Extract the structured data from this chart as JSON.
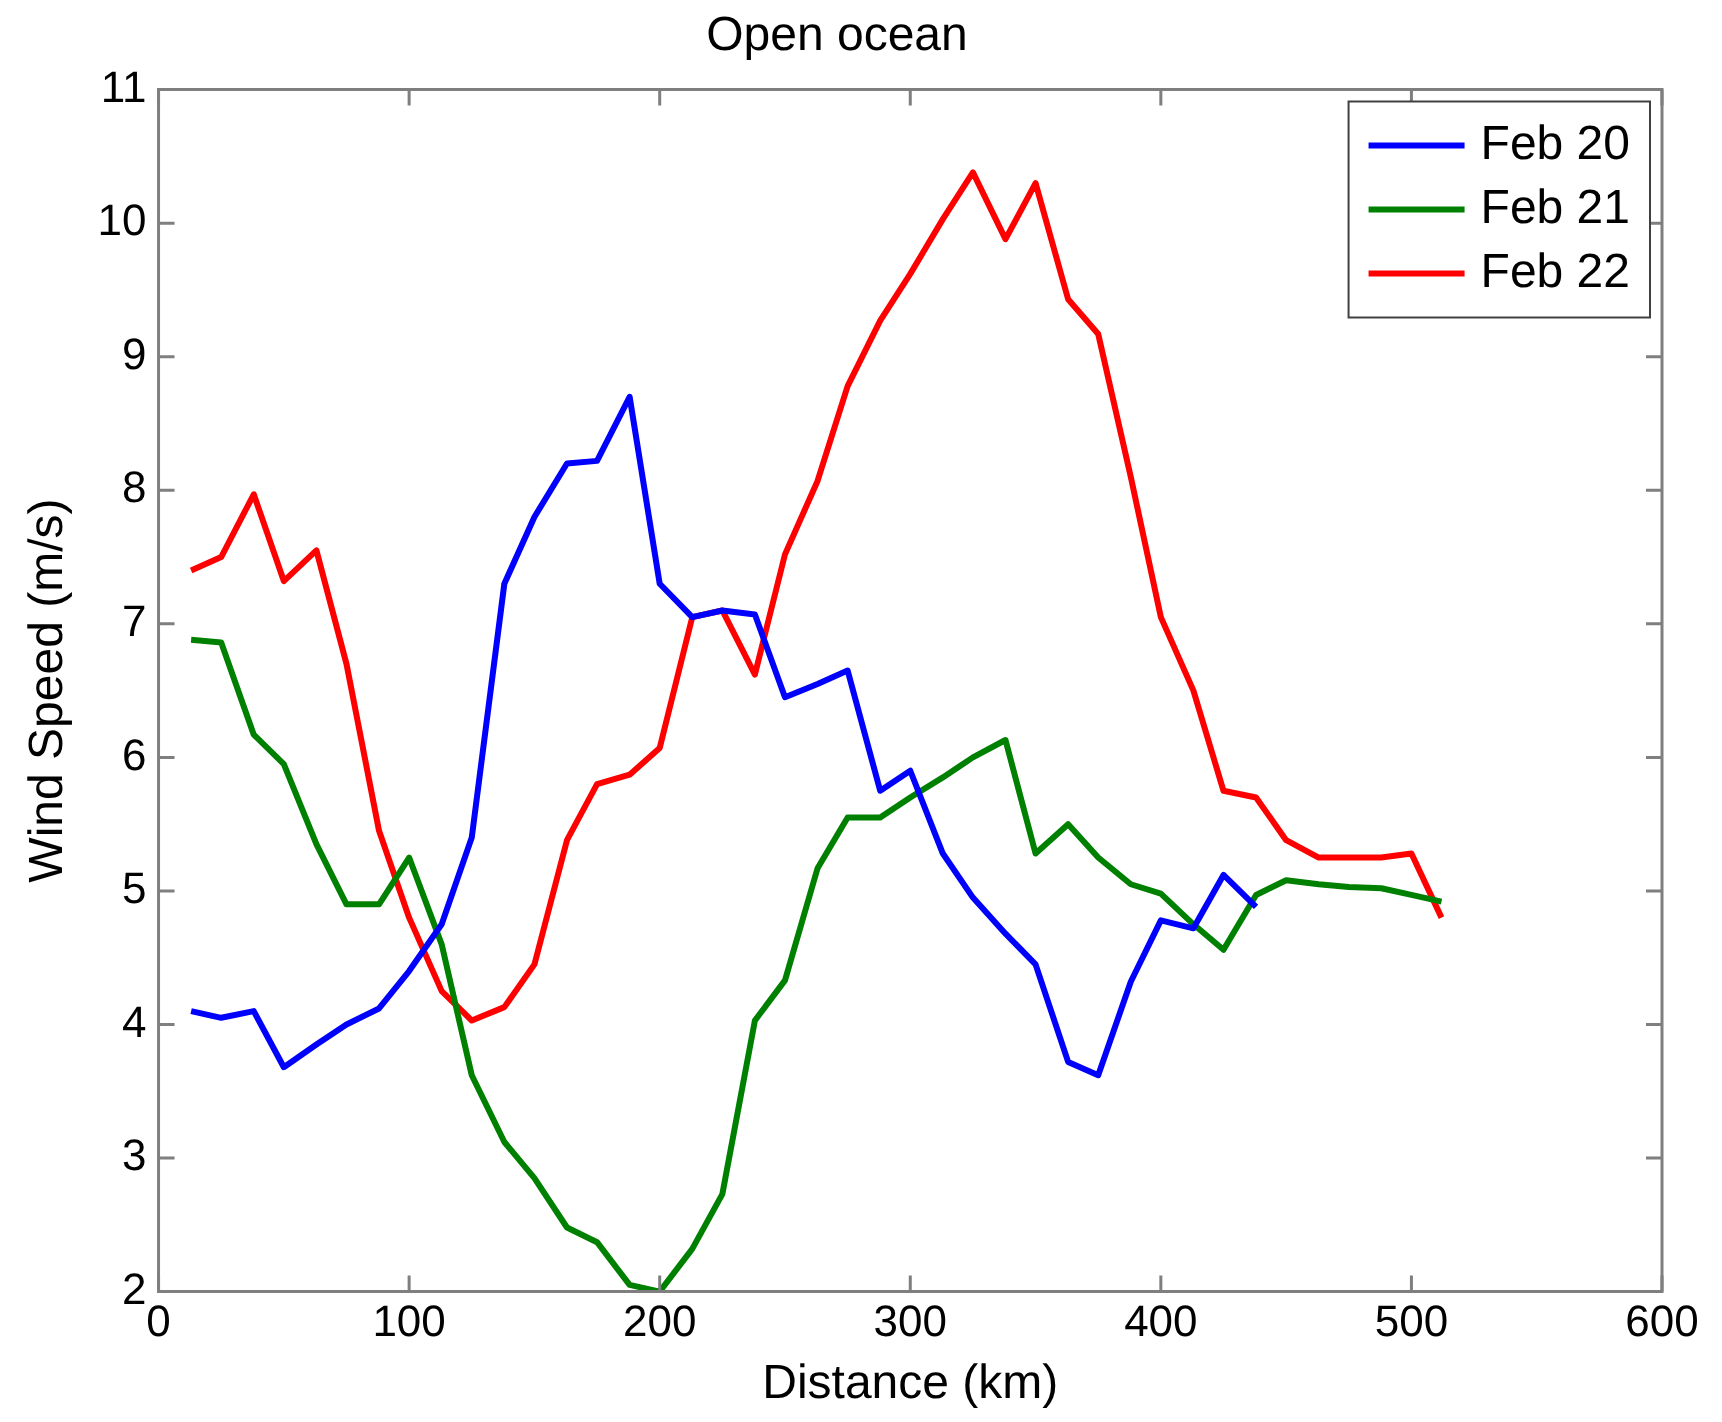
{
  "chart_data": {
    "type": "line",
    "title": "Open ocean",
    "xlabel": "Distance (km)",
    "ylabel": "Wind Speed (m/s)",
    "x": [
      13,
      25,
      38,
      50,
      63,
      75,
      88,
      100,
      113,
      125,
      138,
      150,
      163,
      175,
      188,
      200,
      213,
      225,
      238,
      250,
      263,
      275,
      288,
      300,
      313,
      325,
      338,
      350,
      363,
      375,
      388,
      400,
      413,
      425,
      438,
      450,
      463,
      475,
      488,
      500,
      512
    ],
    "series": [
      {
        "name": "Feb 20",
        "color": "#0000ff",
        "x": [
          13,
          25,
          38,
          50,
          63,
          75,
          88,
          100,
          113,
          125,
          138,
          150,
          163,
          175,
          188,
          200,
          213,
          225,
          238,
          250,
          263,
          275,
          288,
          300,
          313,
          325,
          338,
          350,
          363,
          375,
          388,
          400,
          413,
          425,
          438
        ],
        "values": [
          4.1,
          4.05,
          4.1,
          3.68,
          3.85,
          4.0,
          4.12,
          4.4,
          4.75,
          5.4,
          7.3,
          7.8,
          8.2,
          8.22,
          8.7,
          7.3,
          7.05,
          7.1,
          7.07,
          6.45,
          6.55,
          6.65,
          5.75,
          5.9,
          5.28,
          4.95,
          4.68,
          4.45,
          3.72,
          3.62,
          4.32,
          4.78,
          4.72,
          5.12,
          4.88
        ]
      },
      {
        "name": "Feb 21",
        "color": "#008000",
        "values": [
          6.88,
          6.86,
          6.17,
          5.95,
          5.35,
          4.9,
          4.9,
          5.25,
          4.6,
          3.62,
          3.12,
          2.85,
          2.48,
          2.37,
          2.05,
          2.0,
          2.32,
          2.73,
          4.03,
          4.33,
          5.17,
          5.55,
          5.55,
          5.7,
          5.85,
          6.0,
          6.13,
          5.28,
          5.5,
          5.25,
          5.05,
          4.98,
          4.75,
          4.56,
          4.97,
          5.08,
          5.05,
          5.03,
          5.02,
          4.97,
          4.92
        ]
      },
      {
        "name": "Feb 22",
        "color": "#ff0000",
        "values": [
          7.4,
          7.5,
          7.97,
          7.32,
          7.55,
          6.7,
          5.45,
          4.8,
          4.25,
          4.03,
          4.13,
          4.45,
          5.38,
          5.8,
          5.87,
          6.07,
          7.05,
          7.1,
          6.62,
          7.52,
          8.07,
          8.78,
          9.27,
          9.62,
          10.03,
          10.38,
          9.88,
          10.3,
          9.43,
          9.17,
          8.1,
          7.05,
          6.5,
          5.75,
          5.7,
          5.38,
          5.25,
          5.25,
          5.25,
          5.28,
          4.8
        ]
      }
    ],
    "xlim": [
      0,
      600
    ],
    "xticks": [
      0,
      100,
      200,
      300,
      400,
      500,
      600
    ],
    "ylim": [
      2,
      11
    ],
    "yticks": [
      2,
      3,
      4,
      5,
      6,
      7,
      8,
      9,
      10,
      11
    ],
    "grid": false,
    "legend": "top right",
    "marker": "none",
    "line_style": "solid"
  }
}
